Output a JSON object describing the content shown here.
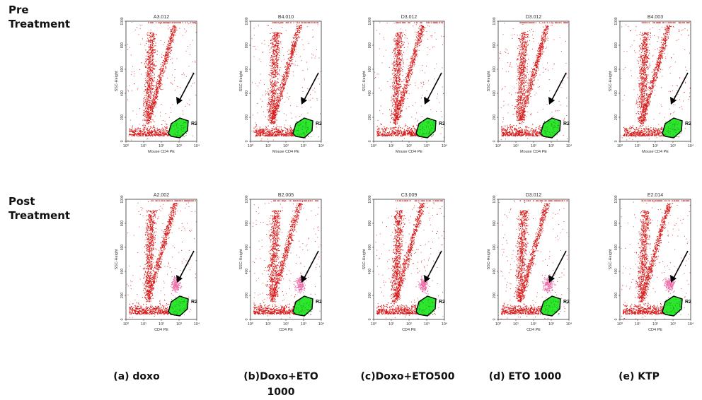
{
  "figure": {
    "row_labels": [
      {
        "line1": "Pre",
        "line2": "Treatment"
      },
      {
        "line1": "Post",
        "line2": "Treatment"
      }
    ],
    "gate_label": "R2",
    "y_axis_label": "SSC-Height",
    "y_ticks": [
      "0",
      "200",
      "400",
      "600",
      "800",
      "1000"
    ],
    "x_ticks": [
      "10⁰",
      "10¹",
      "10²",
      "10³",
      "10⁴"
    ],
    "x_axis_label_pre": "Mouse CD4 PE",
    "x_axis_label_post": "CD4 PE",
    "colors": {
      "events": "#d81a1a",
      "gated": "#2ee62e",
      "highlight": "#f06aa8",
      "arrow": "#000000"
    },
    "panels": [
      {
        "row": "pre",
        "header": "A3.012"
      },
      {
        "row": "pre",
        "header": "B4.010"
      },
      {
        "row": "pre",
        "header": "D3.012"
      },
      {
        "row": "pre",
        "header": "D3.012"
      },
      {
        "row": "pre",
        "header": "B4.003"
      },
      {
        "row": "post",
        "header": "A2.002"
      },
      {
        "row": "post",
        "header": "B2.005"
      },
      {
        "row": "post",
        "header": "C3.009"
      },
      {
        "row": "post",
        "header": "D3.012"
      },
      {
        "row": "post",
        "header": "E2.014"
      }
    ],
    "captions": [
      {
        "line1": "(a) doxo",
        "line2": ""
      },
      {
        "line1": "(b)Doxo+ETO",
        "line2": "1000"
      },
      {
        "line1": "(c)Doxo+ETO500",
        "line2": ""
      },
      {
        "line1": "(d) ETO 1000",
        "line2": ""
      },
      {
        "line1": "(e) KTP",
        "line2": ""
      }
    ]
  }
}
